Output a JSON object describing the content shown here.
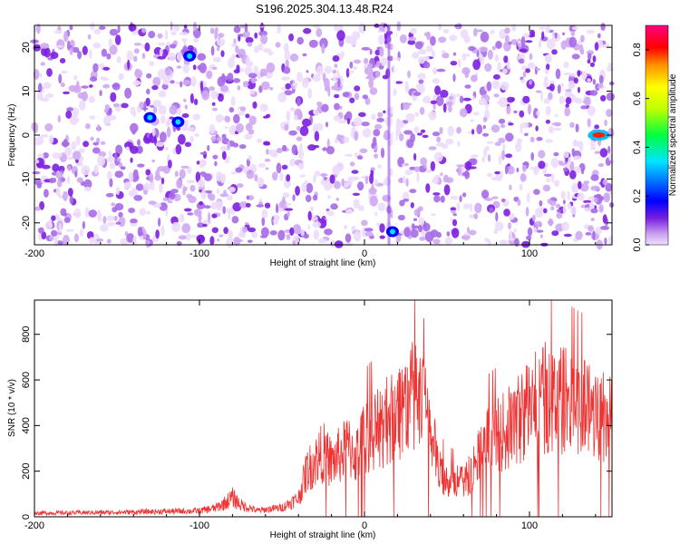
{
  "title": "S196.2025.304.13.48.R24",
  "chart_data": [
    {
      "type": "heatmap",
      "xlabel": "Height of straight line (km)",
      "ylabel": "Frequency (Hz)",
      "xlim": [
        -200,
        150
      ],
      "ylim": [
        -25,
        25
      ],
      "xticks": [
        -200,
        -100,
        0,
        100
      ],
      "yticks": [
        -20,
        -10,
        0,
        10,
        20
      ],
      "colorbar": {
        "label": "Normalized spectral amplitude",
        "range": [
          0,
          0.9
        ],
        "ticks": [
          "0.0",
          "0.2",
          "0.4",
          "0.6",
          "0.8"
        ]
      },
      "hotspots": [
        {
          "x": -130,
          "y": 4,
          "value": 0.45
        },
        {
          "x": -113,
          "y": 3,
          "value": 0.45
        },
        {
          "x": -106,
          "y": 18,
          "value": 0.35
        },
        {
          "x": 17,
          "y": -22,
          "value": 0.3
        },
        {
          "x": 142,
          "y": 0,
          "value": 0.9
        }
      ]
    },
    {
      "type": "line",
      "xlabel": "Height of straight line (km)",
      "ylabel": "SNR (10 * v/v)",
      "xlim": [
        -200,
        150
      ],
      "ylim": [
        0,
        950
      ],
      "xticks": [
        -200,
        -100,
        0,
        100
      ],
      "yticks": [
        0,
        200,
        400,
        600,
        800
      ],
      "color": "#ee3333",
      "envelope": {
        "x": [
          -200,
          -150,
          -100,
          -90,
          -85,
          -80,
          -75,
          -65,
          -50,
          -40,
          -35,
          -25,
          -20,
          -10,
          -5,
          0,
          10,
          20,
          30,
          35,
          40,
          45,
          50,
          60,
          65,
          70,
          75,
          85,
          95,
          100,
          110,
          120,
          130,
          140,
          150
        ],
        "y": [
          25,
          30,
          40,
          60,
          90,
          130,
          80,
          40,
          60,
          120,
          300,
          420,
          350,
          450,
          400,
          520,
          580,
          700,
          780,
          720,
          600,
          300,
          250,
          220,
          300,
          420,
          500,
          550,
          650,
          720,
          780,
          760,
          720,
          700,
          620
        ]
      }
    }
  ]
}
